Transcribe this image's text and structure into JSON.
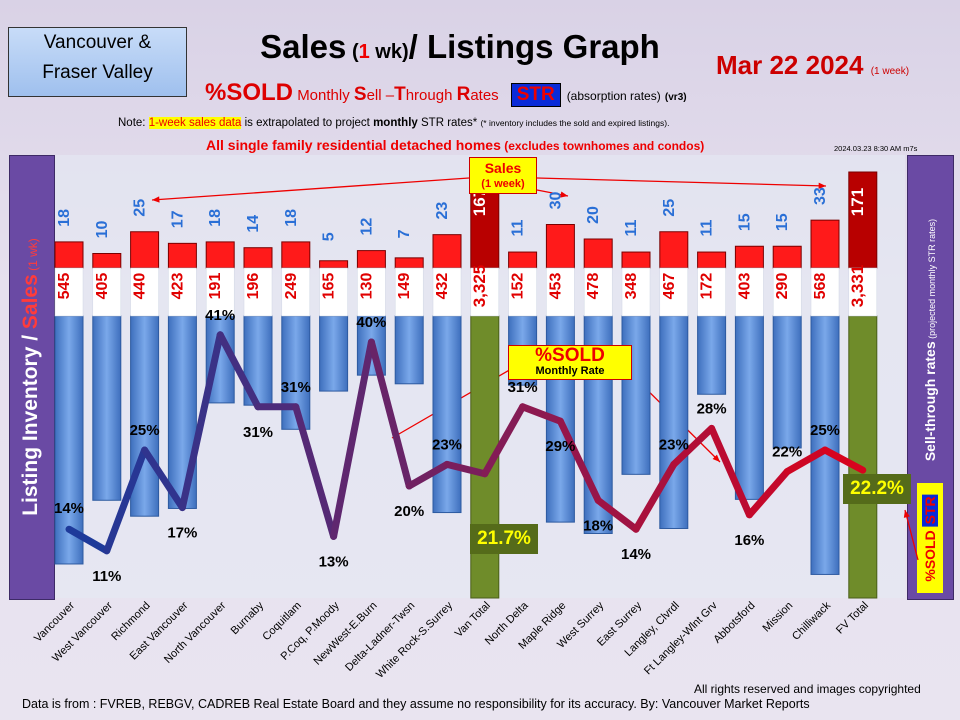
{
  "header": {
    "region_line1": "Vancouver &",
    "region_line2": "Fraser Valley",
    "title_pre": "Sales",
    "title_wk_open": " (",
    "title_wk_num": "1",
    "title_wk_rest": " wk)",
    "title_post": "/ Listings Graph",
    "date": "Mar 22  2024",
    "date_note": "(1 week)",
    "sold_big": "%SOLD",
    "subtitle_words": [
      "Monthly ",
      "S",
      "ell –",
      "T",
      "hrough ",
      "R",
      "ates"
    ],
    "str_badge": "STR",
    "absorption": "(absorption rates)",
    "version": "(vr3)",
    "note_prefix": "Note: ",
    "note_highlight": "1-week sales data",
    "note_mid": " is extrapolated to project ",
    "note_bold": "monthly",
    "note_rest": " STR rates* ",
    "note_small": "(* inventory includes the sold and expired listings).",
    "homes_main": "All single family residential detached homes",
    "homes_sub": " (excludes townhomes and condos)",
    "timestamp": "2024.03.23  8:30 AM m7s"
  },
  "left_label": {
    "a": "Listing Inventory",
    "slash": " / ",
    "b": "Sales",
    "c": " (1 wk)"
  },
  "right_label": {
    "main": "Sell-through  rates",
    "sub": "  (projected monthly STR rates)",
    "str_prefix": "%SOLD ",
    "str_badge": "STR"
  },
  "callouts": {
    "sales_line1": "Sales",
    "sales_line2": "(1 week)",
    "sold_line1": "%SOLD",
    "sold_line2": "Monthly Rate"
  },
  "totals": {
    "van": "21.7%",
    "fv": "22.2%"
  },
  "footer": {
    "source": "Data is from : FVREB, REBGV, CADREB Real Estate Board and they assume no responsibility for its accuracy. By: Vancouver  Market Reports",
    "rights": "All rights reserved and  images copyrighted"
  },
  "colors": {
    "listing_bar": "#5b8ed6",
    "total_bar": "#6f8c2a",
    "sales_bar": "#ff1a1a",
    "total_sales_bar": "#b80000",
    "line_start": "#1e3a9a",
    "line_end": "#e00018",
    "sales_label": "#2a6fd6",
    "listing_label": "#e00000"
  },
  "chart_data": {
    "type": "bar",
    "categories": [
      "Vancouver",
      "West Vancouver",
      "Richmond",
      "East Vancouver",
      "North Vancouver",
      "Burnaby",
      "Coquitlam",
      "P.Coq, P.Moody",
      "NewWest-E.Burn",
      "Delta-Ladner-Twsn",
      "White Rock-S.Surrey",
      "Van Total",
      "North Delta",
      "Maple Ridge",
      "West Surrey",
      "East Surrey",
      "Langley, Clvrdl",
      "Ft Langley-Wlnt Grv",
      "Abbotsford",
      "Mission",
      "Chilliwack",
      "FV Total"
    ],
    "series": [
      {
        "name": "Sales",
        "values": [
          18,
          10,
          25,
          17,
          18,
          14,
          18,
          5,
          12,
          7,
          23,
          167,
          11,
          30,
          20,
          11,
          25,
          11,
          15,
          15,
          33,
          171
        ]
      },
      {
        "name": "Listing Inventory",
        "values": [
          545,
          405,
          440,
          423,
          191,
          196,
          249,
          165,
          130,
          149,
          432,
          3325,
          152,
          453,
          478,
          348,
          467,
          172,
          403,
          290,
          568,
          3331
        ]
      },
      {
        "name": "%SOLD",
        "values": [
          14,
          11,
          25,
          17,
          41,
          31,
          31,
          13,
          40,
          20,
          23,
          21.7,
          31,
          29,
          18,
          14,
          23,
          28,
          16,
          22,
          25,
          22.2
        ]
      }
    ],
    "value_labels": {
      "sales": [
        "18",
        "10",
        "25",
        "17",
        "18",
        "14",
        "18",
        "5",
        "12",
        "7",
        "23",
        "167",
        "11",
        "30",
        "20",
        "11",
        "25",
        "11",
        "15",
        "15",
        "33",
        "171"
      ],
      "listings": [
        "545",
        "405",
        "440",
        "423",
        "191",
        "196",
        "249",
        "165",
        "130",
        "149",
        "432",
        "3,325",
        "152",
        "453",
        "478",
        "348",
        "467",
        "172",
        "403",
        "290",
        "568",
        "3,331"
      ],
      "sold": [
        "14%",
        "11%",
        "25%",
        "17%",
        "41%",
        "31%",
        "31%",
        "13%",
        "40%",
        "20%",
        "23%",
        "",
        "31%",
        "29%",
        "18%",
        "14%",
        "23%",
        "28%",
        "16%",
        "22%",
        "25%",
        ""
      ]
    },
    "total_indices": [
      11,
      21
    ]
  }
}
